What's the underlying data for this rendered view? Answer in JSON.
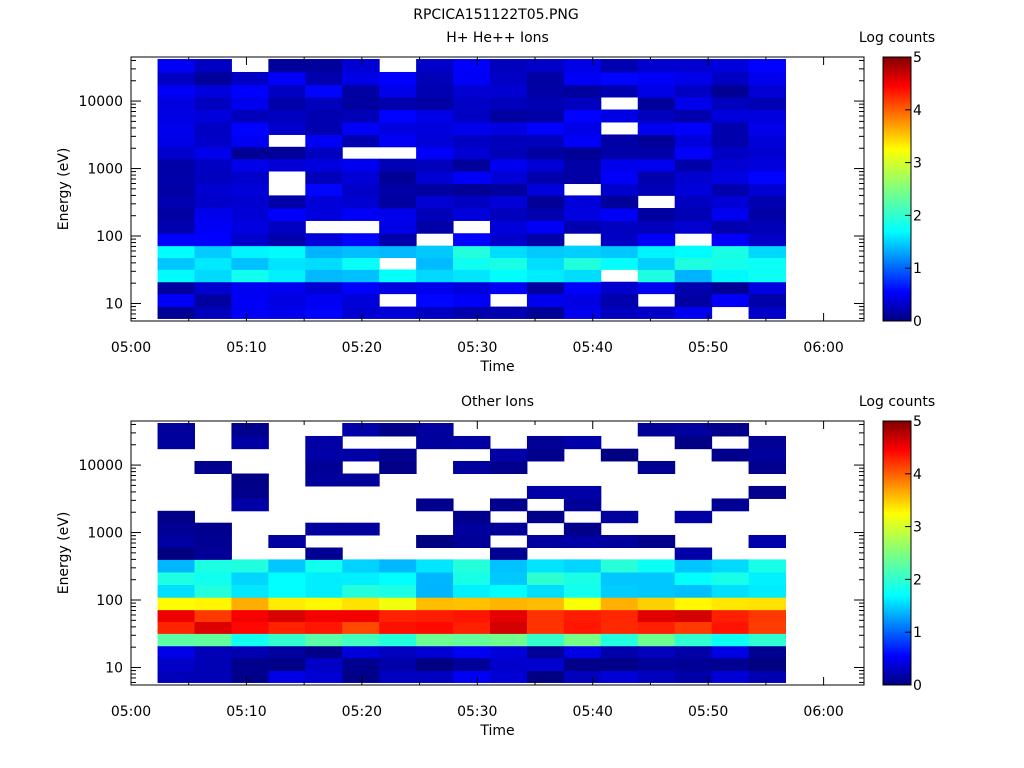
{
  "figure_title": "RPCICA151122T05.PNG",
  "chart_data": [
    {
      "type": "heatmap",
      "title": "H+ He++ Ions",
      "xlabel": "Time",
      "ylabel": "Energy (eV)",
      "x_ticks": [
        "05:00",
        "05:10",
        "05:20",
        "05:30",
        "05:40",
        "05:50",
        "06:00"
      ],
      "x_range_minutes": [
        0,
        63.5
      ],
      "y_scale": "log",
      "y_range_eV": [
        5.5,
        45000
      ],
      "y_ticks": [
        {
          "value": 10,
          "label": "10"
        },
        {
          "value": 100,
          "label": "100"
        },
        {
          "value": 1000,
          "label": "1000"
        },
        {
          "value": 10000,
          "label": "10000"
        }
      ],
      "time_columns_start_min": [
        2.3,
        5.5,
        8.7,
        11.9,
        15.1,
        18.3,
        21.5,
        24.7,
        27.9,
        31.1,
        34.3,
        37.5,
        40.7,
        43.9,
        47.1,
        50.3,
        53.5
      ],
      "time_columns_end_min": 56.7,
      "energy_bins_eV": [
        6,
        9,
        14,
        21,
        32,
        48,
        72,
        110,
        170,
        260,
        400,
        600,
        920,
        1400,
        2100,
        3200,
        4900,
        7500,
        11500,
        17500,
        27000,
        42000
      ],
      "band_log_counts": [
        {
          "energy_range_eV": [
            5.5,
            25
          ],
          "log_counts": 0.4
        },
        {
          "energy_range_eV": [
            25,
            60
          ],
          "log_counts": 1.8
        },
        {
          "energy_range_eV": [
            60,
            45000
          ],
          "log_counts": 0.4
        }
      ],
      "colorbar": {
        "label": "Log counts",
        "min": 0,
        "max": 5,
        "ticks": [
          "0",
          "1",
          "2",
          "3",
          "4",
          "5"
        ]
      },
      "grid": false
    },
    {
      "type": "heatmap",
      "title": "Other Ions",
      "xlabel": "Time",
      "ylabel": "Energy (eV)",
      "x_ticks": [
        "05:00",
        "05:10",
        "05:20",
        "05:30",
        "05:40",
        "05:50",
        "06:00"
      ],
      "x_range_minutes": [
        0,
        63.5
      ],
      "y_scale": "log",
      "y_range_eV": [
        5.5,
        45000
      ],
      "y_ticks": [
        {
          "value": 10,
          "label": "10"
        },
        {
          "value": 100,
          "label": "100"
        },
        {
          "value": 1000,
          "label": "1000"
        },
        {
          "value": 10000,
          "label": "10000"
        }
      ],
      "time_columns_start_min": [
        2.3,
        5.5,
        8.7,
        11.9,
        15.1,
        18.3,
        21.5,
        24.7,
        27.9,
        31.1,
        34.3,
        37.5,
        40.7,
        43.9,
        47.1,
        50.3,
        53.5
      ],
      "time_columns_end_min": 56.7,
      "energy_bins_eV": [
        6,
        9,
        14,
        21,
        32,
        48,
        72,
        110,
        170,
        260,
        400,
        600,
        920,
        1400,
        2100,
        3200,
        4900,
        7500,
        11500,
        17500,
        27000,
        42000
      ],
      "band_log_counts": [
        {
          "energy_range_eV": [
            5.5,
            20
          ],
          "log_counts": 0.3
        },
        {
          "energy_range_eV": [
            20,
            30
          ],
          "log_counts": 2.2
        },
        {
          "energy_range_eV": [
            30,
            60
          ],
          "log_counts": 4.3
        },
        {
          "energy_range_eV": [
            60,
            120
          ],
          "log_counts": 3.3
        },
        {
          "energy_range_eV": [
            120,
            400
          ],
          "log_counts": 1.8
        },
        {
          "energy_range_eV": [
            400,
            45000
          ],
          "log_counts": 0.3
        }
      ],
      "colorbar": {
        "label": "Log counts",
        "min": 0,
        "max": 5,
        "ticks": [
          "0",
          "1",
          "2",
          "3",
          "4",
          "5"
        ]
      },
      "grid": false
    }
  ]
}
